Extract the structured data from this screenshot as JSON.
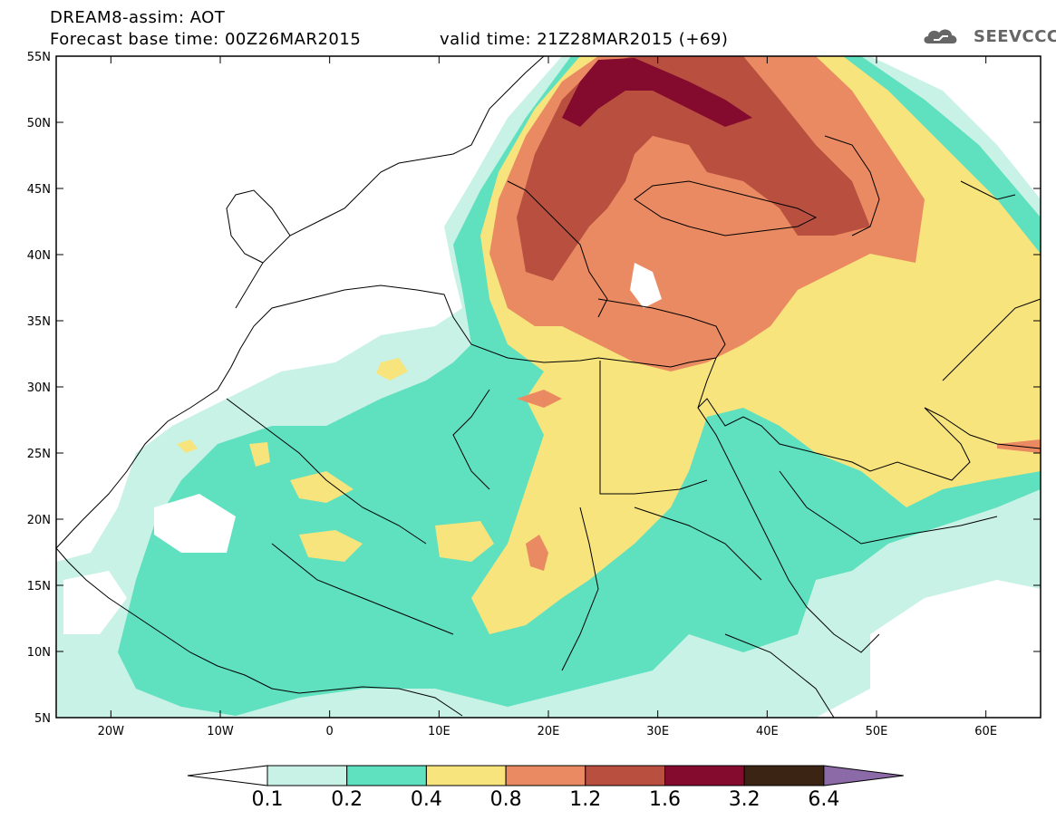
{
  "header": {
    "line1": "DREAM8-assim: AOT",
    "line2": "Forecast base time: 00Z26MAR2015",
    "line3": "valid time: 21Z28MAR2015 (+69)",
    "logo_text": "SEEVCCC",
    "logo_icon": "cloud-icon"
  },
  "map": {
    "lat_labels": [
      "55N",
      "50N",
      "45N",
      "40N",
      "35N",
      "30N",
      "25N",
      "20N",
      "15N",
      "10N",
      "5N"
    ],
    "lon_labels": [
      "20W",
      "10W",
      "0",
      "10E",
      "20E",
      "30E",
      "40E",
      "50E",
      "60E"
    ]
  },
  "colorbar": {
    "labels": [
      "0.1",
      "0.2",
      "0.4",
      "0.8",
      "1.2",
      "1.6",
      "3.2",
      "6.4"
    ],
    "colors": [
      "#ffffff",
      "#c9f2e6",
      "#5fe0bf",
      "#f8e47c",
      "#ea8a62",
      "#b9503f",
      "#840a2e",
      "#3b2414",
      "#8c6aa8"
    ]
  }
}
